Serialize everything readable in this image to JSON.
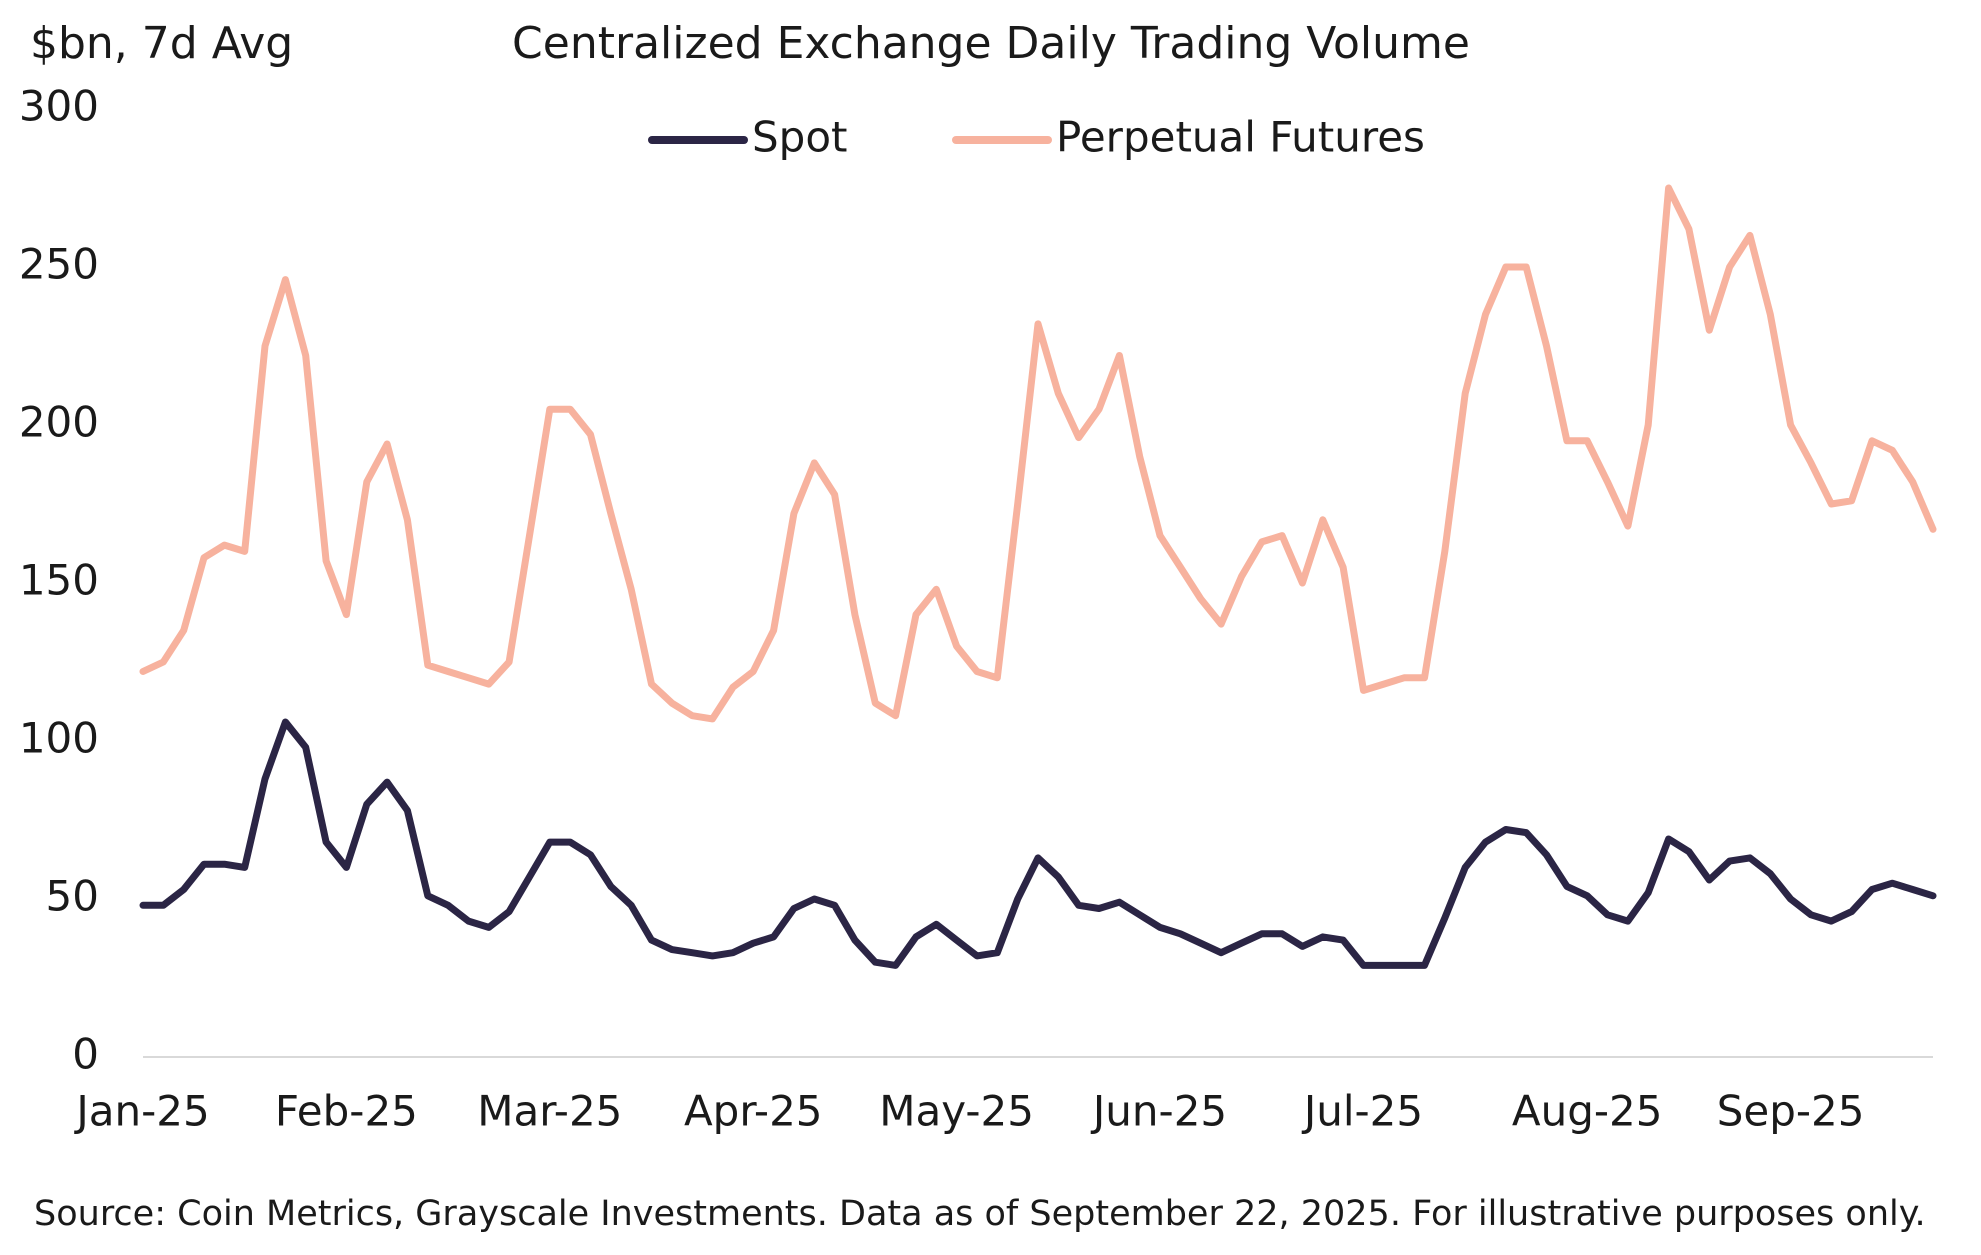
{
  "chart_data": {
    "type": "line",
    "title": "Centralized Exchange Daily Trading Volume",
    "ylabel": "$bn, 7d Avg",
    "source": "Source: Coin Metrics, Grayscale Investments. Data as of September 22, 2025. For illustrative purposes only.",
    "legend": "top",
    "grid": false,
    "ylim": [
      0,
      300
    ],
    "yticks": [
      0,
      50,
      100,
      150,
      200,
      250,
      300
    ],
    "categories": [
      "Jan-25",
      null,
      null,
      null,
      null,
      null,
      null,
      null,
      null,
      null,
      "Feb-25",
      null,
      null,
      null,
      null,
      null,
      null,
      null,
      null,
      null,
      "Mar-25",
      null,
      null,
      null,
      null,
      null,
      null,
      null,
      null,
      null,
      "Apr-25",
      null,
      null,
      null,
      null,
      null,
      null,
      null,
      null,
      null,
      "May-25",
      null,
      null,
      null,
      null,
      null,
      null,
      null,
      null,
      null,
      "Jun-25",
      null,
      null,
      null,
      null,
      null,
      null,
      null,
      null,
      null,
      "Jul-25",
      null,
      null,
      null,
      null,
      null,
      null,
      null,
      null,
      null,
      null,
      "Aug-25",
      null,
      null,
      null,
      null,
      null,
      null,
      null,
      null,
      null,
      "Sep-25",
      null,
      null,
      null,
      null,
      null,
      null,
      null
    ],
    "series": [
      {
        "name": "Spot",
        "color": "#2b2545",
        "values": [
          48,
          48,
          53,
          61,
          61,
          60,
          88,
          106,
          98,
          68,
          60,
          80,
          87,
          78,
          51,
          48,
          43,
          41,
          46,
          57,
          68,
          68,
          64,
          54,
          48,
          37,
          34,
          33,
          32,
          33,
          36,
          38,
          47,
          50,
          48,
          37,
          30,
          29,
          38,
          42,
          37,
          32,
          33,
          50,
          63,
          57,
          48,
          47,
          49,
          45,
          41,
          39,
          36,
          33,
          36,
          39,
          39,
          35,
          38,
          37,
          29,
          29,
          29,
          29,
          44,
          60,
          68,
          72,
          71,
          64,
          54,
          51,
          45,
          43,
          52,
          69,
          65,
          56,
          62,
          63,
          58,
          50,
          45,
          43,
          46,
          53,
          55,
          53,
          51
        ]
      },
      {
        "name": "Perpetual Futures",
        "color": "#f7b29e",
        "values": [
          122,
          125,
          135,
          158,
          162,
          160,
          225,
          246,
          222,
          157,
          140,
          182,
          194,
          170,
          124,
          122,
          120,
          118,
          125,
          165,
          205,
          205,
          197,
          172,
          148,
          118,
          112,
          108,
          107,
          117,
          122,
          135,
          172,
          188,
          178,
          140,
          112,
          108,
          140,
          148,
          130,
          122,
          120,
          175,
          232,
          210,
          196,
          205,
          222,
          190,
          165,
          155,
          145,
          137,
          152,
          163,
          165,
          150,
          170,
          155,
          116,
          118,
          120,
          120,
          160,
          210,
          235,
          250,
          250,
          225,
          195,
          195,
          182,
          168,
          200,
          275,
          262,
          230,
          250,
          260,
          235,
          200,
          188,
          175,
          176,
          195,
          192,
          182,
          167
        ]
      }
    ]
  }
}
